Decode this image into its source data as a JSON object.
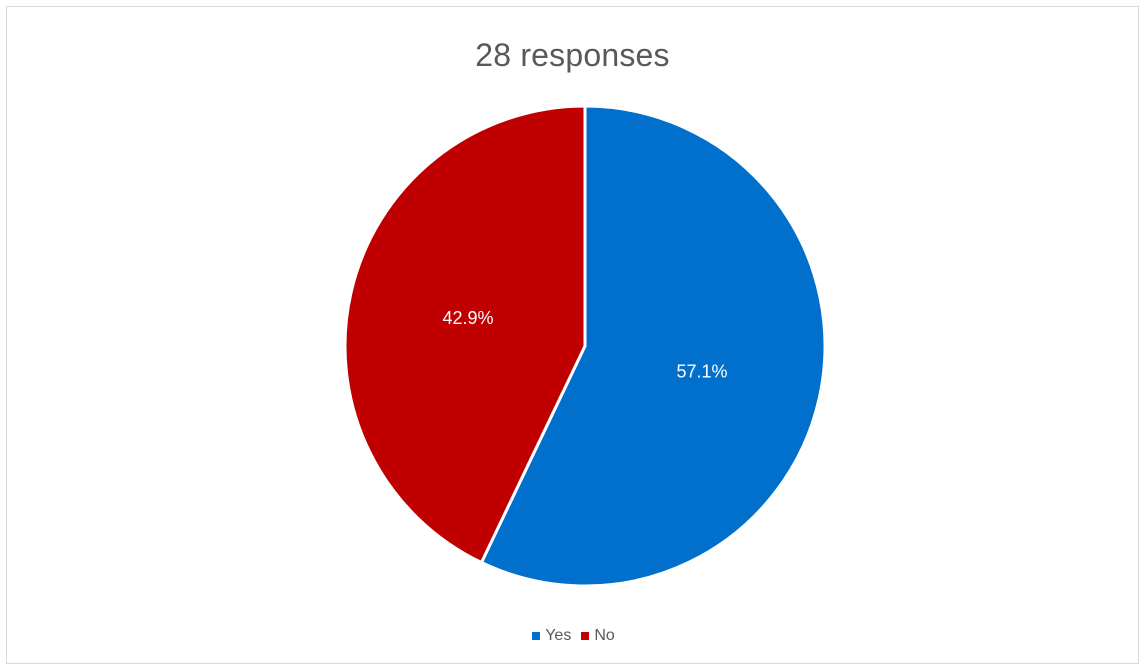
{
  "chart_data": {
    "type": "pie",
    "title": "28 responses",
    "categories": [
      "Yes",
      "No"
    ],
    "values": [
      57.1,
      42.9
    ],
    "data_labels": [
      "57.1%",
      "42.9%"
    ],
    "colors": [
      "#0070cc",
      "#c00000"
    ],
    "start_angle_deg": 0,
    "direction": "clockwise",
    "legend_position": "bottom"
  }
}
